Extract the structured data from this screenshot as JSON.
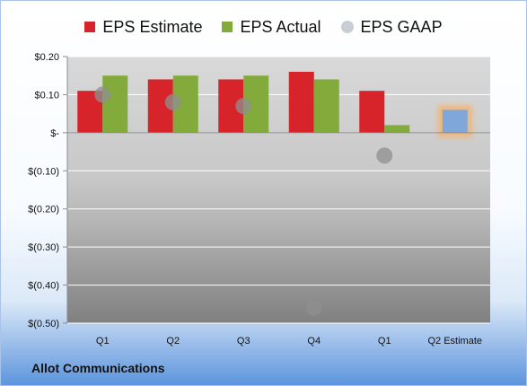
{
  "company": "Allot Communications",
  "chart_data": {
    "type": "bar",
    "categories": [
      "Q1",
      "Q2",
      "Q3",
      "Q4",
      "Q1",
      "Q2 Estimate"
    ],
    "series": [
      {
        "name": "EPS Estimate",
        "type": "bar",
        "color": "#d7242a",
        "values": [
          0.11,
          0.14,
          0.14,
          0.16,
          0.11,
          null
        ]
      },
      {
        "name": "EPS Actual",
        "type": "bar",
        "color": "#82ab3c",
        "values": [
          0.15,
          0.15,
          0.15,
          0.14,
          0.02,
          null
        ]
      },
      {
        "name": "EPS GAAP",
        "type": "scatter",
        "color": "#a6a6a6",
        "values": [
          0.1,
          0.08,
          0.07,
          -0.46,
          -0.06,
          null
        ]
      },
      {
        "name": "",
        "type": "bar",
        "color": "#7fa7d9",
        "highlight": "#f6b26b",
        "values": [
          null,
          null,
          null,
          null,
          null,
          0.06
        ]
      }
    ],
    "yticks": [
      "$0.20",
      "$0.10",
      "$-",
      "$(0.10)",
      "$(0.20)",
      "$(0.30)",
      "$(0.40)",
      "$(0.50)"
    ],
    "ylim": [
      -0.5,
      0.2
    ],
    "grid": true,
    "legend": "top"
  }
}
